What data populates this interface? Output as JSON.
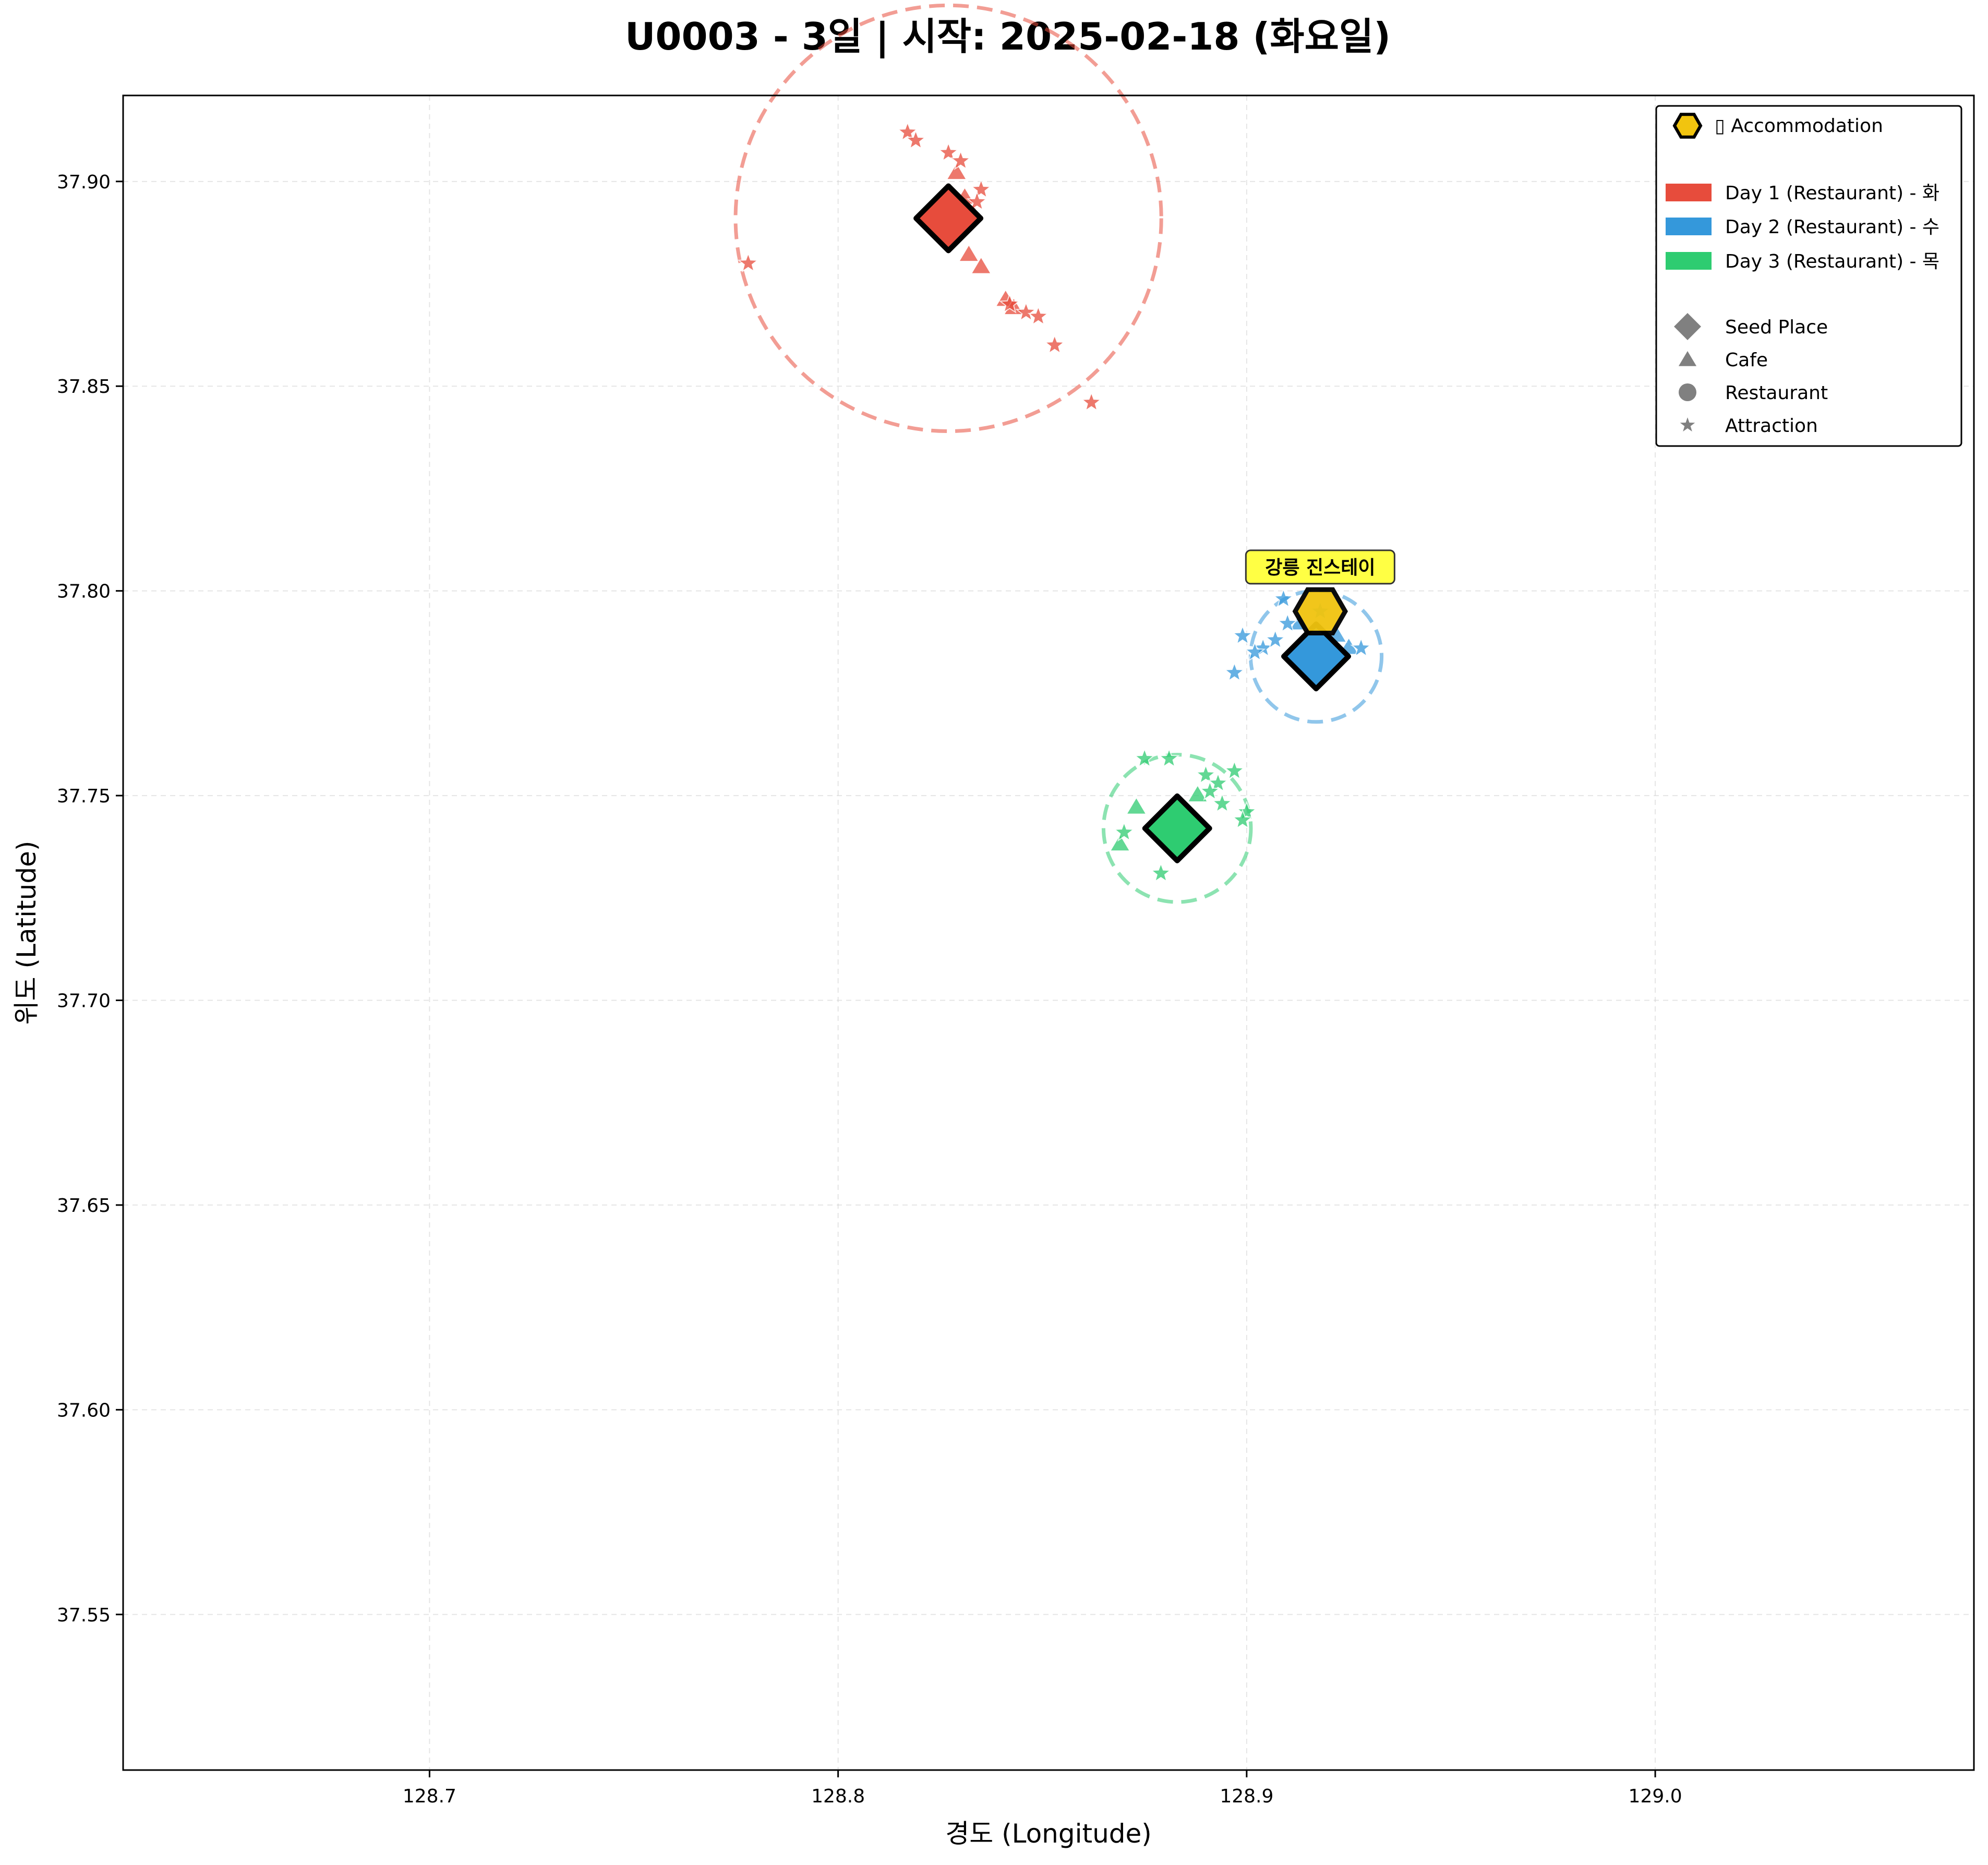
{
  "chart_data": {
    "type": "scatter",
    "title": "U0003 - 3일 | 시작: 2025-02-18 (화요일)",
    "xlabel": "경도 (Longitude)",
    "ylabel": "위도 (Latitude)",
    "xlim": [
      128.625,
      129.078
    ],
    "ylim": [
      37.512,
      37.921
    ],
    "xticks": [
      128.7,
      128.8,
      128.9,
      129.0
    ],
    "xtick_labels": [
      "128.7",
      "128.8",
      "128.9",
      "129.0"
    ],
    "yticks": [
      37.55,
      37.6,
      37.65,
      37.7,
      37.75,
      37.8,
      37.85,
      37.9
    ],
    "ytick_labels": [
      "37.55",
      "37.60",
      "37.65",
      "37.70",
      "37.75",
      "37.80",
      "37.85",
      "37.90"
    ],
    "grid": true,
    "legend_position": "top-right",
    "legend": {
      "accommodation_label": "▯ Accommodation",
      "days": [
        {
          "label": "Day 1 (Restaurant) - 화",
          "color": "#e74c3c"
        },
        {
          "label": "Day 2 (Restaurant) - 수",
          "color": "#3498db"
        },
        {
          "label": "Day 3 (Restaurant) - 목",
          "color": "#2ecc71"
        }
      ],
      "shapes": [
        {
          "label": "Seed Place",
          "shape": "diamond"
        },
        {
          "label": "Cafe",
          "shape": "triangle"
        },
        {
          "label": "Restaurant",
          "shape": "circle"
        },
        {
          "label": "Attraction",
          "shape": "star"
        }
      ]
    },
    "accommodation": {
      "lon": 128.918,
      "lat": 37.795,
      "label": "강릉 진스테이",
      "color": "#f1c40f",
      "label_bg": "#ffff44"
    },
    "days": [
      {
        "color": "#e74c3c",
        "seed": {
          "lon": 128.827,
          "lat": 37.891
        },
        "radius_lat": 0.052,
        "cafes": [
          {
            "lon": 128.829,
            "lat": 37.902
          },
          {
            "lon": 128.831,
            "lat": 37.896
          },
          {
            "lon": 128.833,
            "lat": 37.892
          },
          {
            "lon": 128.832,
            "lat": 37.882
          },
          {
            "lon": 128.835,
            "lat": 37.879
          },
          {
            "lon": 128.841,
            "lat": 37.871
          },
          {
            "lon": 128.843,
            "lat": 37.869
          }
        ],
        "attractions": [
          {
            "lon": 128.817,
            "lat": 37.912
          },
          {
            "lon": 128.819,
            "lat": 37.91
          },
          {
            "lon": 128.827,
            "lat": 37.907
          },
          {
            "lon": 128.83,
            "lat": 37.905
          },
          {
            "lon": 128.835,
            "lat": 37.898
          },
          {
            "lon": 128.834,
            "lat": 37.895
          },
          {
            "lon": 128.778,
            "lat": 37.88
          },
          {
            "lon": 128.842,
            "lat": 37.87
          },
          {
            "lon": 128.846,
            "lat": 37.868
          },
          {
            "lon": 128.849,
            "lat": 37.867
          },
          {
            "lon": 128.853,
            "lat": 37.86
          },
          {
            "lon": 128.862,
            "lat": 37.846
          }
        ]
      },
      {
        "color": "#3498db",
        "seed": {
          "lon": 128.917,
          "lat": 37.784
        },
        "radius_lat": 0.016,
        "cafes": [
          {
            "lon": 128.925,
            "lat": 37.786
          },
          {
            "lon": 128.922,
            "lat": 37.789
          },
          {
            "lon": 128.913,
            "lat": 37.792
          }
        ],
        "attractions": [
          {
            "lon": 128.909,
            "lat": 37.798
          },
          {
            "lon": 128.899,
            "lat": 37.789
          },
          {
            "lon": 128.904,
            "lat": 37.786
          },
          {
            "lon": 128.907,
            "lat": 37.788
          },
          {
            "lon": 128.91,
            "lat": 37.792
          },
          {
            "lon": 128.902,
            "lat": 37.785
          },
          {
            "lon": 128.897,
            "lat": 37.78
          },
          {
            "lon": 128.918,
            "lat": 37.795
          },
          {
            "lon": 128.928,
            "lat": 37.786
          }
        ]
      },
      {
        "color": "#2ecc71",
        "seed": {
          "lon": 128.883,
          "lat": 37.742
        },
        "radius_lat": 0.018,
        "cafes": [
          {
            "lon": 128.873,
            "lat": 37.747
          },
          {
            "lon": 128.869,
            "lat": 37.738
          },
          {
            "lon": 128.888,
            "lat": 37.75
          }
        ],
        "attractions": [
          {
            "lon": 128.875,
            "lat": 37.759
          },
          {
            "lon": 128.881,
            "lat": 37.759
          },
          {
            "lon": 128.89,
            "lat": 37.755
          },
          {
            "lon": 128.897,
            "lat": 37.756
          },
          {
            "lon": 128.893,
            "lat": 37.753
          },
          {
            "lon": 128.891,
            "lat": 37.751
          },
          {
            "lon": 128.894,
            "lat": 37.748
          },
          {
            "lon": 128.9,
            "lat": 37.746
          },
          {
            "lon": 128.899,
            "lat": 37.744
          },
          {
            "lon": 128.87,
            "lat": 37.741
          },
          {
            "lon": 128.879,
            "lat": 37.731
          }
        ]
      }
    ]
  }
}
